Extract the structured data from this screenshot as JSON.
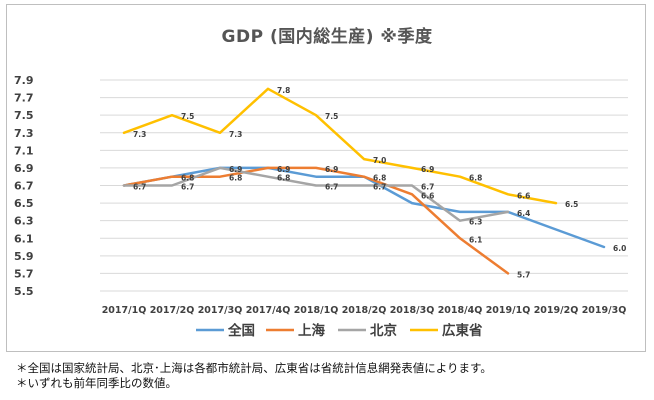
{
  "chart_data": {
    "type": "line",
    "title": "GDP (国内総生産)  ※季度",
    "categories": [
      "2017/1Q",
      "2017/2Q",
      "2017/3Q",
      "2017/4Q",
      "2018/1Q",
      "2018/2Q",
      "2018/3Q",
      "2018/4Q",
      "2019/1Q",
      "2019/2Q",
      "2019/3Q"
    ],
    "y_ticks": [
      "5.5",
      "5.7",
      "5.9",
      "6.1",
      "6.3",
      "6.5",
      "6.7",
      "6.9",
      "7.1",
      "7.3",
      "7.5",
      "7.7",
      "7.9"
    ],
    "ylim": [
      5.5,
      7.9
    ],
    "grid": true,
    "legend_position": "bottom",
    "series": [
      {
        "name": "全国",
        "color": "#5b9bd5",
        "values": [
          6.7,
          6.8,
          6.9,
          6.9,
          6.8,
          6.8,
          6.5,
          6.4,
          6.4,
          6.2,
          6.0
        ],
        "labels": [
          "",
          "",
          "",
          "",
          "",
          "",
          "",
          "",
          "6.4",
          "",
          "6.0"
        ]
      },
      {
        "name": "上海",
        "color": "#ed7d31",
        "values": [
          6.7,
          6.8,
          6.8,
          6.9,
          6.9,
          6.8,
          6.6,
          6.1,
          5.7,
          null,
          null
        ],
        "labels": [
          "",
          "6.8",
          "6.8",
          "6.9",
          "6.9",
          "6.8",
          "6.6",
          "6.1",
          "5.7",
          "",
          ""
        ]
      },
      {
        "name": "北京",
        "color": "#a5a5a5",
        "values": [
          6.7,
          6.7,
          6.9,
          6.8,
          6.7,
          6.7,
          6.7,
          6.3,
          6.4,
          null,
          null
        ],
        "labels": [
          "6.7",
          "6.7",
          "6.9",
          "6.8",
          "6.7",
          "6.7",
          "6.7",
          "6.3",
          "",
          "",
          ""
        ]
      },
      {
        "name": "広東省",
        "color": "#ffc000",
        "values": [
          7.3,
          7.5,
          7.3,
          7.8,
          7.5,
          7.0,
          6.9,
          6.8,
          6.6,
          6.5,
          null
        ],
        "labels": [
          "7.3",
          "7.5",
          "7.3",
          "7.8",
          "7.5",
          "7.0",
          "6.9",
          "6.8",
          "6.6",
          "6.5",
          ""
        ]
      }
    ]
  },
  "notes": [
    "＊全国は国家統計局、北京･上海は各都市統計局、広東省は省統計信息網発表値によります。",
    "＊いずれも前年同季比の数値。"
  ]
}
